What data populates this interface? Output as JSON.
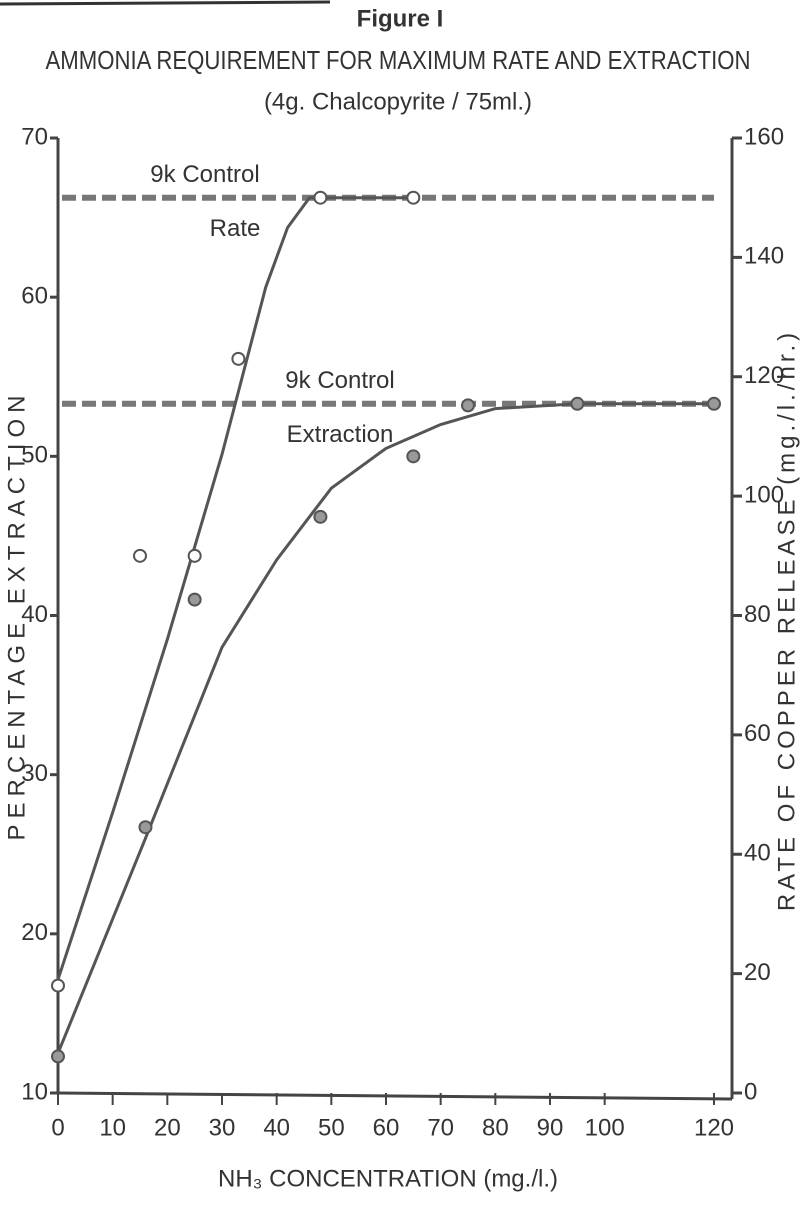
{
  "chart_data": {
    "type": "line",
    "figure_label": "Figure I",
    "title": "AMMONIA REQUIREMENT FOR MAXIMUM RATE AND EXTRACTION",
    "subtitle": "(4g. Chalcopyrite / 75ml.)",
    "xlabel": "NH₃ CONCENTRATION (mg./l.)",
    "ylabel": "PERCENTAGE EXTRACTION",
    "y2label": "RATE OF COPPER RELEASE (mg./l./hr.)",
    "xlim": [
      0,
      120
    ],
    "xticks": [
      0,
      10,
      20,
      30,
      40,
      50,
      60,
      70,
      80,
      90,
      100,
      120
    ],
    "ylim": [
      10,
      70
    ],
    "yticks": [
      10,
      20,
      30,
      40,
      50,
      60,
      70
    ],
    "y2lim": [
      0,
      160
    ],
    "y2ticks": [
      0,
      20,
      40,
      60,
      80,
      100,
      120,
      140,
      160
    ],
    "series": [
      {
        "name": "Rate",
        "axis": "y2",
        "color": "#555555",
        "marker": "open",
        "x": [
          0,
          15,
          25,
          33,
          48,
          65
        ],
        "values": [
          18,
          90,
          90,
          123,
          150,
          150
        ],
        "fit": {
          "x": [
            0,
            10,
            20,
            30,
            38,
            42,
            46,
            50,
            65
          ],
          "values": [
            19,
            47,
            76,
            107,
            135,
            145,
            150,
            150,
            150
          ]
        }
      },
      {
        "name": "Extraction",
        "axis": "y",
        "color": "#555555",
        "marker": "filled",
        "x": [
          0,
          16,
          25,
          48,
          65,
          75,
          95,
          120
        ],
        "values": [
          12.3,
          26.7,
          41,
          46.2,
          50,
          53.2,
          53.3,
          53.3
        ],
        "fit": {
          "x": [
            0,
            16,
            30,
            40,
            50,
            60,
            70,
            80,
            95,
            120
          ],
          "values": [
            12.5,
            26,
            38,
            43.5,
            48,
            50.5,
            52,
            53,
            53.3,
            53.3
          ]
        }
      }
    ],
    "control_lines": [
      {
        "label": [
          "9k Control",
          "Rate"
        ],
        "axis": "y2",
        "value": 150
      },
      {
        "label": [
          "9k Control",
          "Extraction"
        ],
        "axis": "y",
        "value": 53.3
      }
    ]
  }
}
